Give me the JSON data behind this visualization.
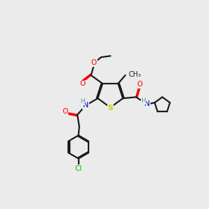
{
  "background_color": "#ebebeb",
  "bond_color": "#1a1a1a",
  "atom_colors": {
    "O": "#ff0000",
    "N": "#0000cc",
    "S": "#cccc00",
    "Cl": "#00bb00",
    "C": "#1a1a1a",
    "H": "#5599aa"
  },
  "figsize": [
    3.0,
    3.0
  ],
  "dpi": 100
}
